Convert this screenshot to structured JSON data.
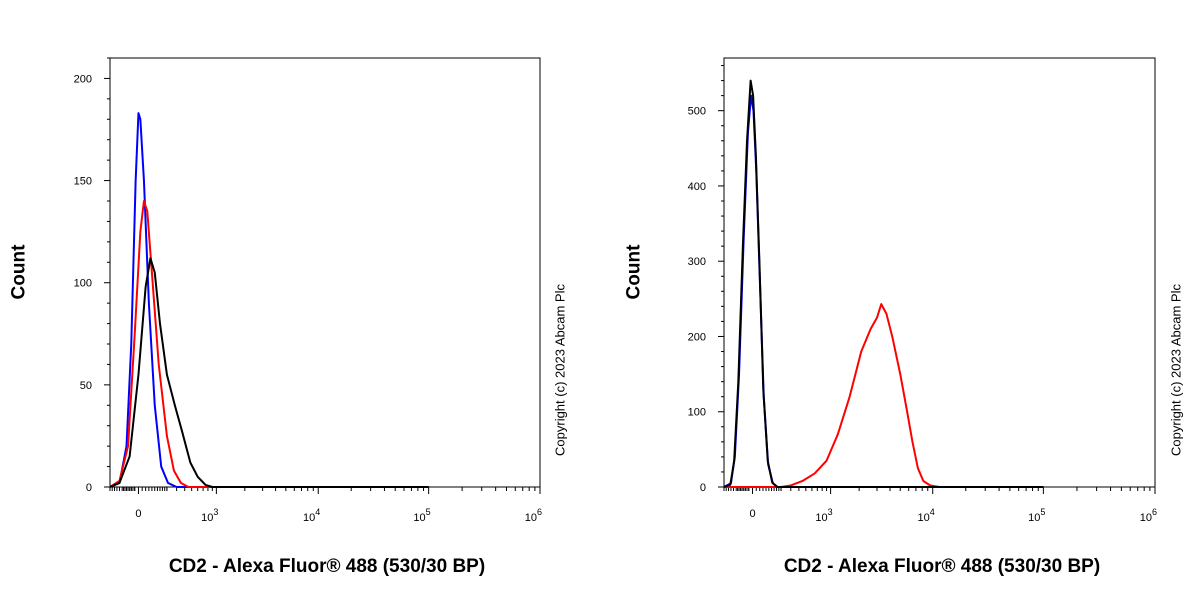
{
  "chart_data": [
    {
      "type": "line",
      "ylabel": "Count",
      "xlabel": "CD2 - Alexa Fluor® 488 (530/30 BP)",
      "copyright": "Copyright (c) 2023 Abcam Plc",
      "ylim": [
        0,
        210
      ],
      "y_ticks": [
        0,
        50,
        100,
        150,
        200
      ],
      "x_ticks": [
        {
          "base": "0",
          "exp": ""
        },
        {
          "base": "10",
          "exp": "3"
        },
        {
          "base": "10",
          "exp": "4"
        },
        {
          "base": "10",
          "exp": "5"
        },
        {
          "base": "10",
          "exp": "6"
        }
      ],
      "series": [
        {
          "color": "#0000ff",
          "points": [
            [
              -200,
              0
            ],
            [
              -120,
              2
            ],
            [
              -70,
              20
            ],
            [
              -40,
              70
            ],
            [
              -15,
              150
            ],
            [
              0,
              183
            ],
            [
              10,
              180
            ],
            [
              30,
              150
            ],
            [
              60,
              90
            ],
            [
              100,
              40
            ],
            [
              150,
              10
            ],
            [
              210,
              2
            ],
            [
              300,
              0
            ],
            [
              100000,
              0
            ]
          ]
        },
        {
          "color": "#ff0000",
          "points": [
            [
              -200,
              0
            ],
            [
              -120,
              3
            ],
            [
              -60,
              20
            ],
            [
              -20,
              75
            ],
            [
              10,
              125
            ],
            [
              30,
              140
            ],
            [
              50,
              135
            ],
            [
              80,
              105
            ],
            [
              130,
              60
            ],
            [
              200,
              25
            ],
            [
              270,
              8
            ],
            [
              350,
              2
            ],
            [
              450,
              0
            ],
            [
              100000,
              0
            ]
          ]
        },
        {
          "color": "#000000",
          "points": [
            [
              -200,
              0
            ],
            [
              -120,
              2
            ],
            [
              -50,
              15
            ],
            [
              0,
              55
            ],
            [
              40,
              98
            ],
            [
              70,
              112
            ],
            [
              100,
              105
            ],
            [
              140,
              80
            ],
            [
              200,
              55
            ],
            [
              280,
              40
            ],
            [
              360,
              28
            ],
            [
              480,
              12
            ],
            [
              600,
              5
            ],
            [
              750,
              1
            ],
            [
              900,
              0
            ],
            [
              100000,
              0
            ]
          ]
        }
      ]
    },
    {
      "type": "line",
      "ylabel": "Count",
      "xlabel": "CD2 - Alexa Fluor® 488 (530/30 BP)",
      "copyright": "Copyright (c) 2023 Abcam Plc",
      "ylim": [
        0,
        570
      ],
      "y_ticks": [
        0,
        100,
        200,
        300,
        400,
        500
      ],
      "x_ticks": [
        {
          "base": "0",
          "exp": ""
        },
        {
          "base": "10",
          "exp": "3"
        },
        {
          "base": "10",
          "exp": "4"
        },
        {
          "base": "10",
          "exp": "5"
        },
        {
          "base": "10",
          "exp": "6"
        }
      ],
      "series": [
        {
          "color": "#0000ff",
          "points": [
            [
              -200,
              0
            ],
            [
              -140,
              5
            ],
            [
              -110,
              40
            ],
            [
              -80,
              150
            ],
            [
              -50,
              330
            ],
            [
              -25,
              470
            ],
            [
              -8,
              520
            ],
            [
              5,
              500
            ],
            [
              20,
              420
            ],
            [
              40,
              280
            ],
            [
              65,
              120
            ],
            [
              95,
              30
            ],
            [
              130,
              5
            ],
            [
              170,
              0
            ],
            [
              100000,
              0
            ]
          ]
        },
        {
          "color": "#ff0000",
          "points": [
            [
              -200,
              0
            ],
            [
              200,
              0
            ],
            [
              300,
              2
            ],
            [
              450,
              8
            ],
            [
              650,
              18
            ],
            [
              900,
              35
            ],
            [
              1200,
              70
            ],
            [
              1600,
              120
            ],
            [
              2100,
              180
            ],
            [
              2600,
              210
            ],
            [
              3000,
              225
            ],
            [
              3300,
              243
            ],
            [
              3700,
              230
            ],
            [
              4200,
              200
            ],
            [
              5000,
              150
            ],
            [
              5800,
              100
            ],
            [
              6500,
              60
            ],
            [
              7300,
              25
            ],
            [
              8200,
              8
            ],
            [
              9500,
              2
            ],
            [
              11500,
              0
            ],
            [
              100000,
              0
            ]
          ]
        },
        {
          "color": "#000000",
          "points": [
            [
              -200,
              0
            ],
            [
              -145,
              3
            ],
            [
              -115,
              35
            ],
            [
              -85,
              140
            ],
            [
              -55,
              320
            ],
            [
              -30,
              460
            ],
            [
              -10,
              540
            ],
            [
              3,
              520
            ],
            [
              18,
              440
            ],
            [
              38,
              300
            ],
            [
              62,
              130
            ],
            [
              92,
              35
            ],
            [
              125,
              6
            ],
            [
              165,
              0
            ],
            [
              100000,
              0
            ]
          ]
        }
      ]
    }
  ]
}
